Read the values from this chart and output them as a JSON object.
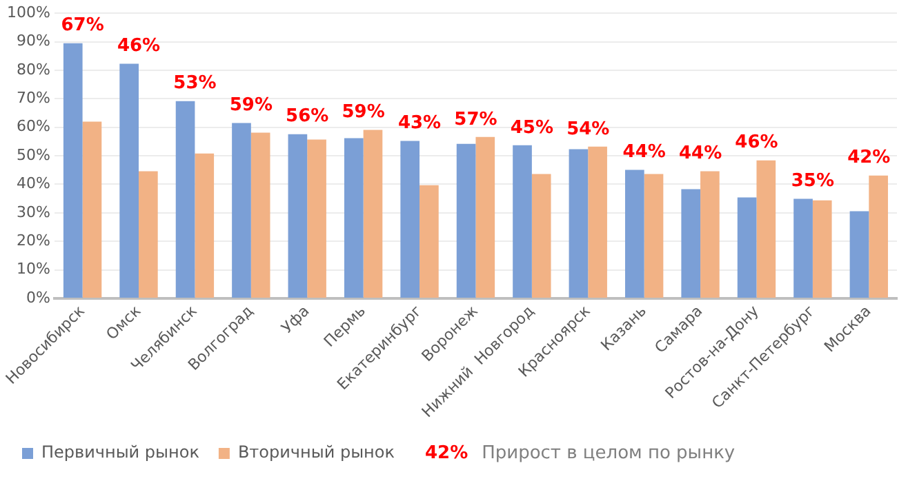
{
  "chart_data": {
    "type": "bar",
    "categories": [
      "Новосибирск",
      "Омск",
      "Челябинск",
      "Волгоград",
      "Уфа",
      "Пермь",
      "Екатеринбург",
      "Воронеж",
      "Нижний  Новгород",
      "Красноярск",
      "Казань",
      "Самара",
      "Ростов-на-Дону",
      "Санкт-Петербург",
      "Москва"
    ],
    "series": [
      {
        "name": "Первичный рынок",
        "color": "#7b9fd6",
        "values": [
          89.5,
          82.3,
          69.2,
          61.5,
          57.6,
          56.2,
          55.2,
          54.2,
          53.7,
          52.3,
          45.1,
          38.3,
          35.4,
          34.9,
          30.6
        ]
      },
      {
        "name": "Вторичный рынок",
        "color": "#f2b285",
        "values": [
          62.0,
          44.6,
          50.8,
          58.1,
          55.7,
          59.1,
          39.7,
          56.6,
          43.6,
          53.2,
          43.6,
          44.6,
          48.4,
          34.4,
          43.1
        ]
      }
    ],
    "ylim": [
      0,
      100
    ],
    "yticks": [
      {
        "value": 0,
        "label": "0%"
      },
      {
        "value": 10,
        "label": "10%"
      },
      {
        "value": 20,
        "label": "20%"
      },
      {
        "value": 30,
        "label": "30%"
      },
      {
        "value": 40,
        "label": "40%"
      },
      {
        "value": 50,
        "label": "50%"
      },
      {
        "value": 60,
        "label": "60%"
      },
      {
        "value": 70,
        "label": "70%"
      },
      {
        "value": 80,
        "label": "80%"
      },
      {
        "value": 90,
        "label": "90%"
      },
      {
        "value": 100,
        "label": "100%"
      }
    ],
    "grid": "y",
    "legend": "bottom",
    "annotations": [
      {
        "text": "67%",
        "x": "Новосибирск",
        "y": 89.5
      },
      {
        "text": "46%",
        "x": "Омск",
        "y": 82.3
      },
      {
        "text": "53%",
        "x": "Челябинск",
        "y": 69.2
      },
      {
        "text": "59%",
        "x": "Волгоград",
        "y": 61.5
      },
      {
        "text": "56%",
        "x": "Уфа",
        "y": 57.6
      },
      {
        "text": "59%",
        "x": "Пермь",
        "y": 59.1
      },
      {
        "text": "43%",
        "x": "Екатеринбург",
        "y": 55.2
      },
      {
        "text": "57%",
        "x": "Воронеж",
        "y": 56.6
      },
      {
        "text": "45%",
        "x": "Нижний  Новгород",
        "y": 53.7
      },
      {
        "text": "54%",
        "x": "Красноярск",
        "y": 53.2
      },
      {
        "text": "44%",
        "x": "Казань",
        "y": 45.1
      },
      {
        "text": "44%",
        "x": "Самара",
        "y": 44.6
      },
      {
        "text": "46%",
        "x": "Ростов-на-Дону",
        "y": 48.4
      },
      {
        "text": "35%",
        "x": "Санкт-Петербург",
        "y": 34.9
      },
      {
        "text": "42%",
        "x": "Москва",
        "y": 43.1
      },
      "42%",
      "Прирост в целом по рынку"
    ]
  }
}
